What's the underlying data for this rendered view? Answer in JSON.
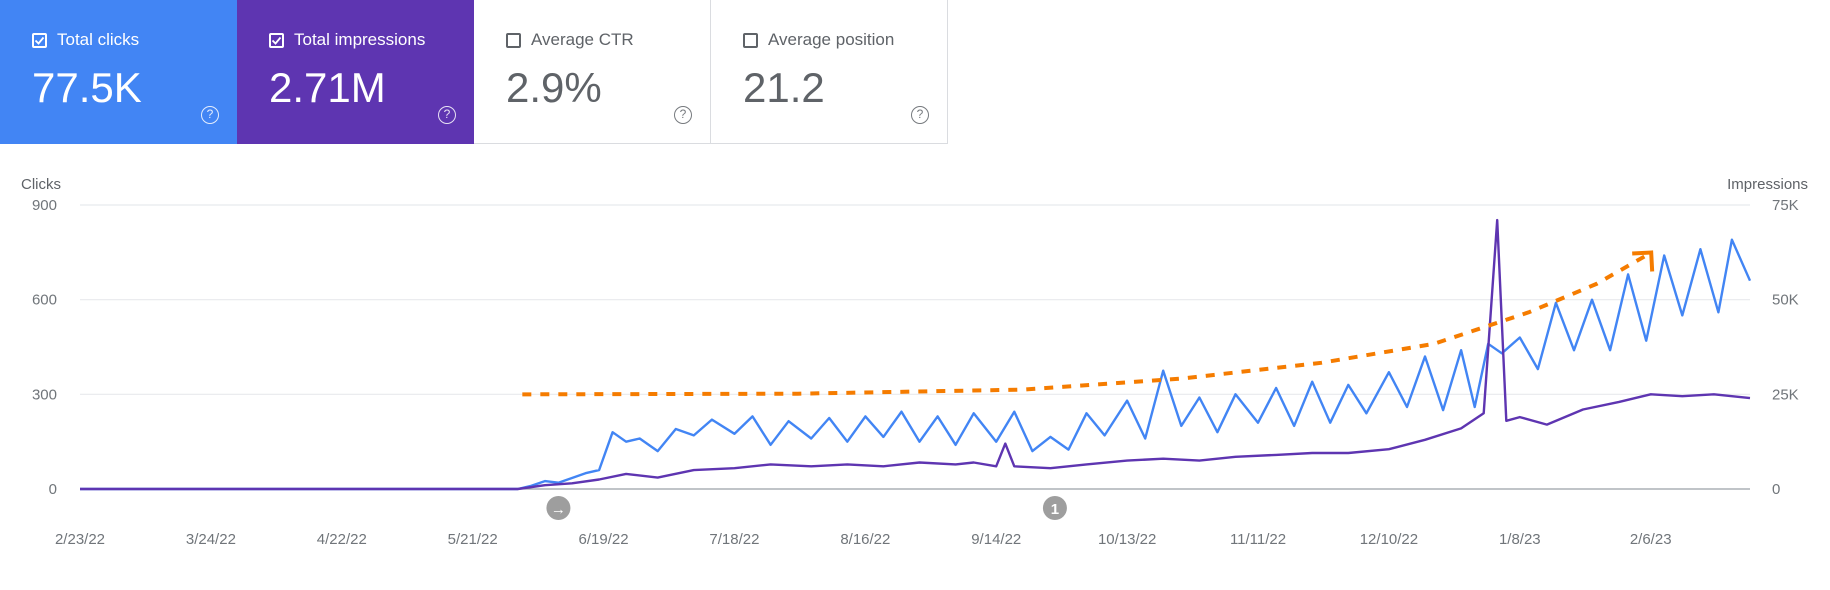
{
  "cards": [
    {
      "label": "Total clicks",
      "value": "77.5K",
      "checked": true,
      "color": "#4285f4"
    },
    {
      "label": "Total impressions",
      "value": "2.71M",
      "checked": true,
      "color": "#5e35b1"
    },
    {
      "label": "Average CTR",
      "value": "2.9%",
      "checked": false
    },
    {
      "label": "Average position",
      "value": "21.2",
      "checked": false
    }
  ],
  "help_glyph": "?",
  "chart_data": {
    "type": "line",
    "left_axis_label": "Clicks",
    "right_axis_label": "Impressions",
    "left_ticks": [
      "0",
      "300",
      "600",
      "900"
    ],
    "left_ylim": [
      0,
      900
    ],
    "right_ticks": [
      "0",
      "25K",
      "50K",
      "75K"
    ],
    "right_ylim": [
      0,
      75000
    ],
    "x_ticks": [
      "2/23/22",
      "3/24/22",
      "4/22/22",
      "5/21/22",
      "6/19/22",
      "7/18/22",
      "8/16/22",
      "9/14/22",
      "10/13/22",
      "11/11/22",
      "12/10/22",
      "1/8/23",
      "2/6/23"
    ],
    "x_start": "2/23/22",
    "x_end": "2/28/23",
    "grid": true,
    "annotations": [
      {
        "date": "6/9/22",
        "symbol": "→"
      },
      {
        "date": "9/27/22",
        "symbol": "1"
      }
    ],
    "series": [
      {
        "axis": "left",
        "color": "#4285f4",
        "points": [
          [
            "2/23/22",
            0
          ],
          [
            "5/31/22",
            0
          ],
          [
            "6/3/22",
            10
          ],
          [
            "6/6/22",
            25
          ],
          [
            "6/9/22",
            20
          ],
          [
            "6/12/22",
            35
          ],
          [
            "6/15/22",
            50
          ],
          [
            "6/18/22",
            60
          ],
          [
            "6/21/22",
            180
          ],
          [
            "6/24/22",
            150
          ],
          [
            "6/27/22",
            160
          ],
          [
            "7/1/22",
            120
          ],
          [
            "7/5/22",
            190
          ],
          [
            "7/9/22",
            170
          ],
          [
            "7/13/22",
            220
          ],
          [
            "7/18/22",
            175
          ],
          [
            "7/22/22",
            230
          ],
          [
            "7/26/22",
            140
          ],
          [
            "7/30/22",
            215
          ],
          [
            "8/4/22",
            160
          ],
          [
            "8/8/22",
            225
          ],
          [
            "8/12/22",
            150
          ],
          [
            "8/16/22",
            230
          ],
          [
            "8/20/22",
            165
          ],
          [
            "8/24/22",
            245
          ],
          [
            "8/28/22",
            150
          ],
          [
            "9/1/22",
            230
          ],
          [
            "9/5/22",
            140
          ],
          [
            "9/9/22",
            240
          ],
          [
            "9/14/22",
            150
          ],
          [
            "9/18/22",
            245
          ],
          [
            "9/22/22",
            120
          ],
          [
            "9/26/22",
            165
          ],
          [
            "9/30/22",
            125
          ],
          [
            "10/4/22",
            240
          ],
          [
            "10/8/22",
            170
          ],
          [
            "10/13/22",
            280
          ],
          [
            "10/17/22",
            160
          ],
          [
            "10/21/22",
            375
          ],
          [
            "10/25/22",
            200
          ],
          [
            "10/29/22",
            290
          ],
          [
            "11/2/22",
            180
          ],
          [
            "11/6/22",
            300
          ],
          [
            "11/11/22",
            210
          ],
          [
            "11/15/22",
            320
          ],
          [
            "11/19/22",
            200
          ],
          [
            "11/23/22",
            340
          ],
          [
            "11/27/22",
            210
          ],
          [
            "12/1/22",
            330
          ],
          [
            "12/5/22",
            240
          ],
          [
            "12/10/22",
            370
          ],
          [
            "12/14/22",
            260
          ],
          [
            "12/18/22",
            420
          ],
          [
            "12/22/22",
            250
          ],
          [
            "12/26/22",
            440
          ],
          [
            "12/29/22",
            260
          ],
          [
            "1/1/23",
            460
          ],
          [
            "1/4/23",
            430
          ],
          [
            "1/8/23",
            480
          ],
          [
            "1/12/23",
            380
          ],
          [
            "1/16/23",
            590
          ],
          [
            "1/20/23",
            440
          ],
          [
            "1/24/23",
            600
          ],
          [
            "1/28/23",
            440
          ],
          [
            "2/1/23",
            680
          ],
          [
            "2/5/23",
            470
          ],
          [
            "2/9/23",
            740
          ],
          [
            "2/13/23",
            550
          ],
          [
            "2/17/23",
            760
          ],
          [
            "2/21/23",
            560
          ],
          [
            "2/24/23",
            790
          ],
          [
            "2/28/23",
            660
          ]
        ]
      },
      {
        "axis": "right",
        "color": "#5e35b1",
        "points": [
          [
            "2/23/22",
            0
          ],
          [
            "5/31/22",
            0
          ],
          [
            "6/6/22",
            1000
          ],
          [
            "6/12/22",
            1500
          ],
          [
            "6/18/22",
            2500
          ],
          [
            "6/24/22",
            4000
          ],
          [
            "7/1/22",
            3000
          ],
          [
            "7/9/22",
            5000
          ],
          [
            "7/18/22",
            5500
          ],
          [
            "7/26/22",
            6500
          ],
          [
            "8/4/22",
            6000
          ],
          [
            "8/12/22",
            6500
          ],
          [
            "8/20/22",
            6000
          ],
          [
            "8/28/22",
            7000
          ],
          [
            "9/5/22",
            6500
          ],
          [
            "9/9/22",
            7000
          ],
          [
            "9/14/22",
            6000
          ],
          [
            "9/16/22",
            12000
          ],
          [
            "9/18/22",
            6000
          ],
          [
            "9/26/22",
            5500
          ],
          [
            "10/4/22",
            6500
          ],
          [
            "10/13/22",
            7500
          ],
          [
            "10/21/22",
            8000
          ],
          [
            "10/29/22",
            7500
          ],
          [
            "11/6/22",
            8500
          ],
          [
            "11/15/22",
            9000
          ],
          [
            "11/23/22",
            9500
          ],
          [
            "12/1/22",
            9500
          ],
          [
            "12/10/22",
            10500
          ],
          [
            "12/18/22",
            13000
          ],
          [
            "12/26/22",
            16000
          ],
          [
            "12/31/22",
            20000
          ],
          [
            "1/3/23",
            71000
          ],
          [
            "1/5/23",
            18000
          ],
          [
            "1/8/23",
            19000
          ],
          [
            "1/14/23",
            17000
          ],
          [
            "1/22/23",
            21000
          ],
          [
            "1/30/23",
            23000
          ],
          [
            "2/6/23",
            25000
          ],
          [
            "2/13/23",
            24500
          ],
          [
            "2/20/23",
            25000
          ],
          [
            "2/28/23",
            24000
          ]
        ]
      }
    ],
    "trend": {
      "color": "#f57c00",
      "points": [
        [
          "6/1/22",
          300
        ],
        [
          "8/1/22",
          302
        ],
        [
          "9/20/22",
          315
        ],
        [
          "10/25/22",
          350
        ],
        [
          "11/25/22",
          400
        ],
        [
          "12/20/22",
          460
        ],
        [
          "1/10/23",
          560
        ],
        [
          "1/25/23",
          650
        ],
        [
          "2/5/23",
          740
        ]
      ]
    }
  }
}
